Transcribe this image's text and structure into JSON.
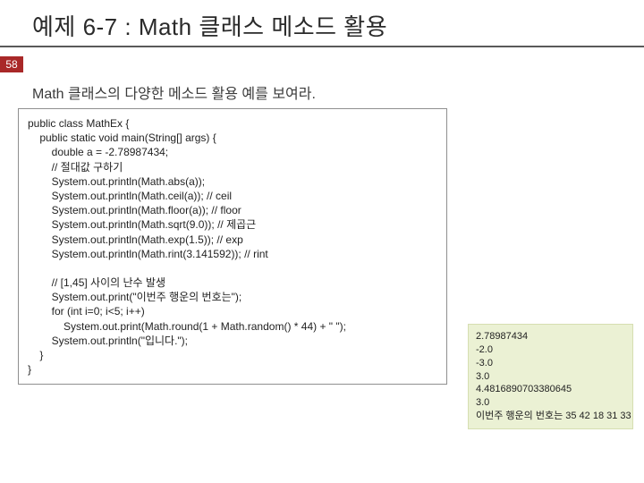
{
  "title": "예제 6-7 : Math 클래스 메소드 활용",
  "page_number": "58",
  "subtitle": "Math 클래스의 다양한 메소드 활용 예를 보여라.",
  "code_box": {
    "border_color": "#8f8f8f",
    "background": "#ffffff",
    "font_size": 12,
    "lines": [
      "public class MathEx {",
      "    public static void main(String[] args) {",
      "        double a = -2.78987434;",
      "        // 절대값 구하기",
      "        System.out.println(Math.abs(a));",
      "        System.out.println(Math.ceil(a)); // ceil",
      "        System.out.println(Math.floor(a)); // floor",
      "        System.out.println(Math.sqrt(9.0)); // 제곱근",
      "        System.out.println(Math.exp(1.5)); // exp",
      "        System.out.println(Math.rint(3.141592)); // rint",
      "",
      "        // [1,45] 사이의 난수 발생",
      "        System.out.print(\"이번주 행운의 번호는\");",
      "        for (int i=0; i<5; i++)",
      "            System.out.print(Math.round(1 + Math.random() * 44) + \" \");",
      "        System.out.println(\"입니다.\");",
      "    }",
      "}"
    ]
  },
  "output_box": {
    "background": "#ebf1d4",
    "border_color": "#d6deb1",
    "font_size": 11,
    "lines": [
      "2.78987434",
      "-2.0",
      "-3.0",
      "3.0",
      "4.4816890703380645",
      "3.0",
      "이번주 행운의 번호는 35 42 18 31 33"
    ]
  },
  "colors": {
    "title_underline": "#5a5a5a",
    "page_badge_bg": "#a92828",
    "page_badge_fg": "#ffffff",
    "text": "#2a2a2a"
  }
}
